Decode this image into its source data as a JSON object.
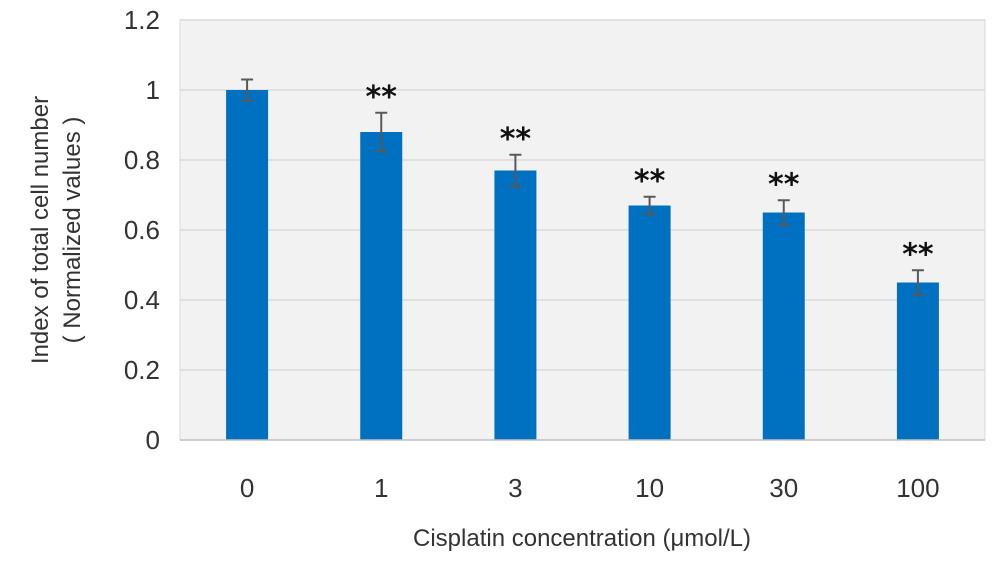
{
  "chart_data": {
    "type": "bar",
    "title": "",
    "xlabel": "Cisplatin concentration (μmol/L)",
    "ylabel_lines": [
      "Index of total cell number",
      "( Normalized values )"
    ],
    "categories": [
      "0",
      "1",
      "3",
      "10",
      "30",
      "100"
    ],
    "values": [
      1.0,
      0.88,
      0.77,
      0.67,
      0.65,
      0.45
    ],
    "errors": [
      0.03,
      0.055,
      0.045,
      0.025,
      0.035,
      0.035
    ],
    "significance": [
      "",
      "**",
      "**",
      "**",
      "**",
      "**"
    ],
    "ylim": [
      0,
      1.2
    ],
    "yticks": [
      "0",
      "0.2",
      "0.4",
      "0.6",
      "0.8",
      "1",
      "1.2"
    ],
    "grid": true,
    "legend": "none",
    "colors": {
      "bar": "#0070c0",
      "plot_background": "#f2f2f2",
      "gridline": "#d9d9d9",
      "error_bar": "#595959"
    }
  }
}
